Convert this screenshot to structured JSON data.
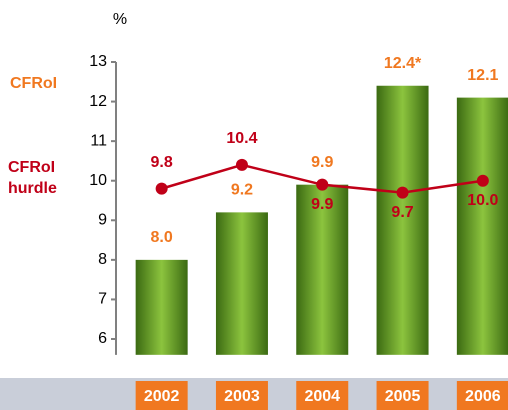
{
  "chart_data": {
    "type": "bar_line",
    "unit_label": "%",
    "categories": [
      "2002",
      "2003",
      "2004",
      "2005",
      "2006"
    ],
    "ylim": [
      5.6,
      13
    ],
    "yticks": [
      6,
      7,
      8,
      9,
      10,
      11,
      12,
      13
    ],
    "series": [
      {
        "name": "CFRoI",
        "type": "bar",
        "color": "#f07820",
        "values": [
          8.0,
          9.2,
          9.9,
          12.4,
          12.1
        ],
        "value_labels": [
          "8.0",
          "9.2",
          "9.9",
          "12.4*",
          "12.1"
        ]
      },
      {
        "name": "CFRoI hurdle",
        "type": "line",
        "color": "#c00018",
        "values": [
          9.8,
          10.4,
          9.9,
          9.7,
          10.0
        ],
        "value_labels": [
          "9.8",
          "10.4",
          "9.9",
          "9.7",
          "10.0"
        ]
      }
    ]
  }
}
